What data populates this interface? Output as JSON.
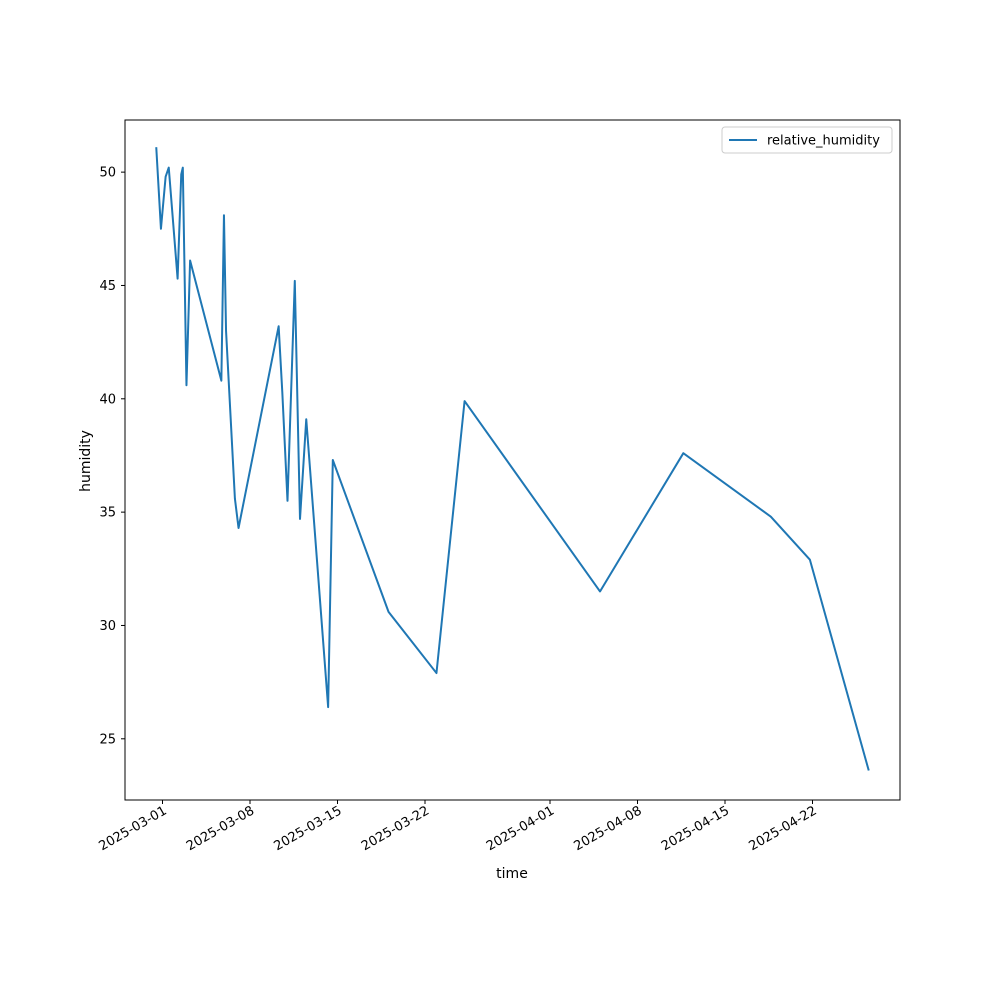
{
  "chart_data": {
    "type": "line",
    "xlabel": "time",
    "ylabel": "humidity",
    "x_type": "date",
    "xlim": [
      "2025-02-26",
      "2025-04-29"
    ],
    "ylim": [
      22.3,
      52.3
    ],
    "y_ticks": [
      25,
      30,
      35,
      40,
      45,
      50
    ],
    "x_ticks": [
      "2025-03-01",
      "2025-03-08",
      "2025-03-15",
      "2025-03-22",
      "2025-04-01",
      "2025-04-08",
      "2025-04-15",
      "2025-04-22"
    ],
    "legend": {
      "placement": "top-right",
      "entries": [
        "relative_humidity"
      ]
    },
    "grid": false,
    "colors": {
      "series": "#1f77b4"
    },
    "series": [
      {
        "name": "relative_humidity",
        "x": [
          "2025-02-28T12:00",
          "2025-02-28T21:00",
          "2025-03-01T06:00",
          "2025-03-01T12:00",
          "2025-03-02T05:00",
          "2025-03-02T12:00",
          "2025-03-02T15:00",
          "2025-03-02T22:00",
          "2025-03-03T05:00",
          "2025-03-05T17:00",
          "2025-03-05T22:00",
          "2025-03-06T02:00",
          "2025-03-06T19:00",
          "2025-03-07T02:00",
          "2025-03-10T07:00",
          "2025-03-10T14:00",
          "2025-03-11T00:00",
          "2025-03-11T14:00",
          "2025-03-12T00:00",
          "2025-03-12T12:00",
          "2025-03-14T06:00",
          "2025-03-14T15:00",
          "2025-03-19T02:00",
          "2025-03-22T22:00",
          "2025-03-25T04:00",
          "2025-04-05T00:00",
          "2025-04-11T16:00",
          "2025-04-18T16:00",
          "2025-04-21T19:00",
          "2025-04-26T12:00"
        ],
        "values": [
          51.1,
          47.5,
          49.8,
          50.2,
          45.3,
          49.9,
          50.2,
          40.6,
          46.1,
          40.8,
          48.1,
          43.0,
          35.6,
          34.3,
          43.2,
          40.3,
          35.5,
          45.2,
          34.7,
          39.1,
          26.4,
          37.3,
          30.6,
          27.9,
          39.9,
          31.5,
          37.6,
          34.8,
          32.9,
          23.6
        ]
      }
    ]
  }
}
